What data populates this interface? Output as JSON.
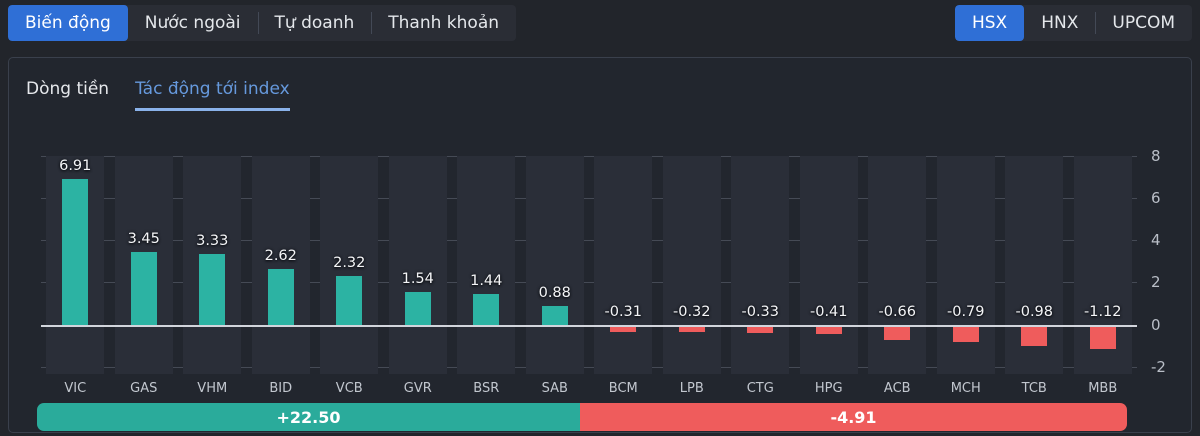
{
  "header": {
    "left_tabs": [
      {
        "label": "Biến động",
        "active": true
      },
      {
        "label": "Nước ngoài",
        "active": false
      },
      {
        "label": "Tự doanh",
        "active": false
      },
      {
        "label": "Thanh khoản",
        "active": false
      }
    ],
    "right_tabs": [
      {
        "label": "HSX",
        "active": true
      },
      {
        "label": "HNX",
        "active": false
      },
      {
        "label": "UPCOM",
        "active": false
      }
    ]
  },
  "panel": {
    "sub_tabs": [
      {
        "label": "Dòng tiền",
        "active": false
      },
      {
        "label": "Tác động tới index",
        "active": true
      }
    ]
  },
  "chart_data": {
    "type": "bar",
    "title": "Tác động tới index",
    "categories": [
      "VIC",
      "GAS",
      "VHM",
      "BID",
      "VCB",
      "GVR",
      "BSR",
      "SAB",
      "BCM",
      "LPB",
      "CTG",
      "HPG",
      "ACB",
      "MCH",
      "TCB",
      "MBB"
    ],
    "values": [
      6.91,
      3.45,
      3.33,
      2.62,
      2.32,
      1.54,
      1.44,
      0.88,
      -0.31,
      -0.32,
      -0.33,
      -0.41,
      -0.66,
      -0.79,
      -0.98,
      -1.12
    ],
    "value_labels": [
      "6.91",
      "3.45",
      "3.33",
      "2.62",
      "2.32",
      "1.54",
      "1.44",
      "0.88",
      "-0.31",
      "-0.32",
      "-0.33",
      "-0.41",
      "-0.66",
      "-0.79",
      "-0.98",
      "-1.12"
    ],
    "y_ticks": [
      8,
      6,
      4,
      2,
      0,
      -2
    ],
    "ylim": [
      -2.34,
      8
    ],
    "grid": true,
    "axis_side": "right",
    "legend_position": "none",
    "positive_color": "#2cb3a3",
    "negative_color": "#ef5c5c"
  },
  "summary": {
    "positive_label": "+22.50",
    "negative_label": "-4.91",
    "positive_color": "#2aab9b",
    "negative_color": "#ef5c5c"
  },
  "colors": {
    "accent_blue": "#2f6fd6",
    "subtab_blue": "#6699dd",
    "subtab_underline": "#8ab2ea",
    "panel_background": "#22262e",
    "page_background": "#22252b",
    "zero_line": "#d2d5dc",
    "gridline": "#454a55"
  }
}
